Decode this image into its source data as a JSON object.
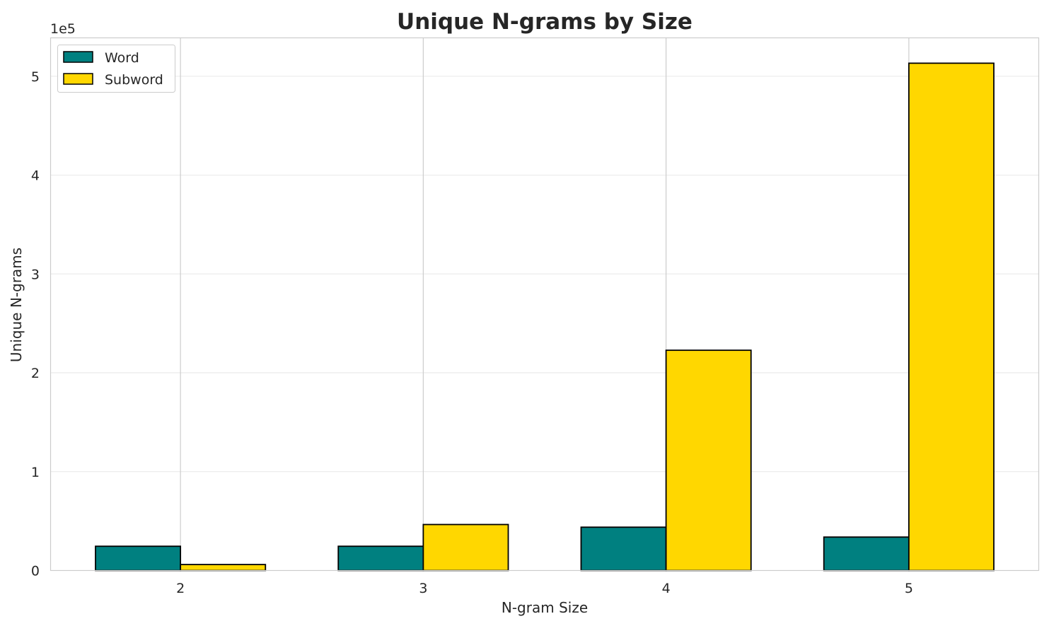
{
  "chart_data": {
    "type": "bar",
    "title": "Unique N-grams by Size",
    "xlabel": "N-gram Size",
    "ylabel": "Unique N-grams",
    "categories": [
      "2",
      "3",
      "4",
      "5"
    ],
    "series": [
      {
        "name": "Word",
        "values": [
          24500,
          24500,
          43800,
          33800
        ],
        "color": "#008080"
      },
      {
        "name": "Subword",
        "values": [
          6000,
          46500,
          222800,
          513200
        ],
        "color": "#FFD700"
      }
    ],
    "y_ticks": [
      0,
      1,
      2,
      3,
      4,
      5
    ],
    "y_tick_labels": [
      "0",
      "1",
      "2",
      "3",
      "4",
      "5"
    ],
    "y_scale_multiplier": 100000,
    "y_offset_label": "1e5",
    "ylim": [
      0,
      538860
    ],
    "grid": true,
    "legend_position": "upper-left",
    "bar_edge_color": "#000000"
  }
}
